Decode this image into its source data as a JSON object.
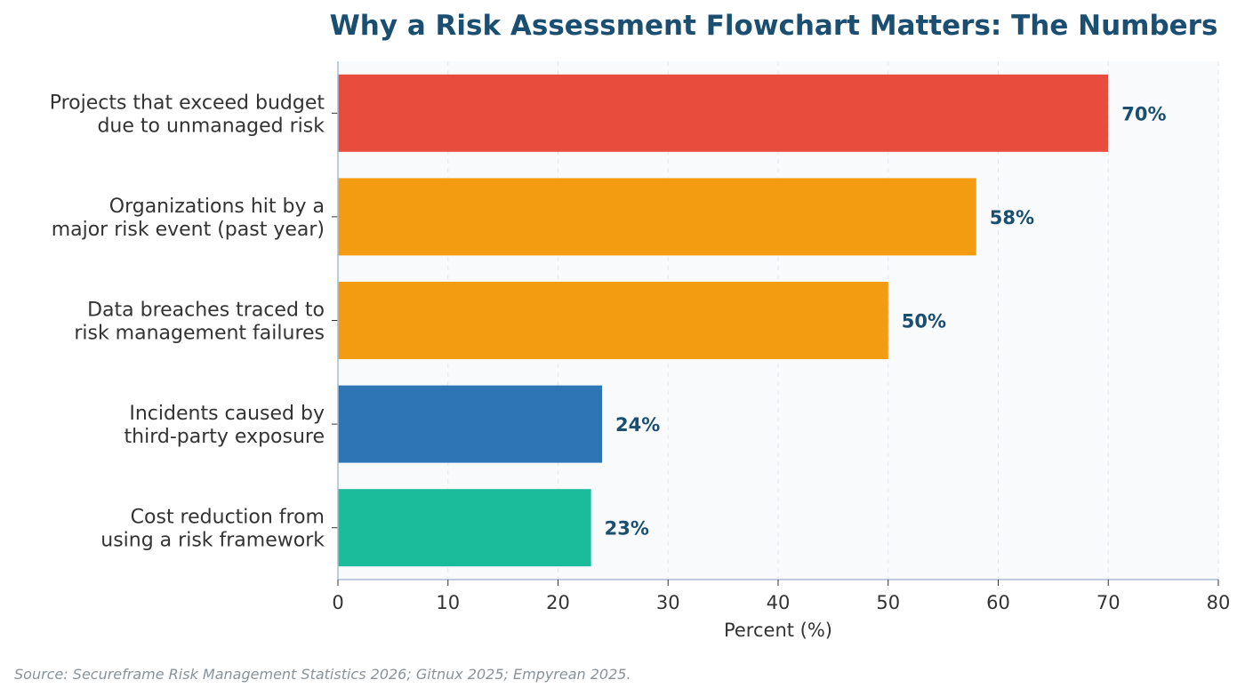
{
  "chart_data": {
    "type": "bar",
    "orientation": "horizontal",
    "title": "Why a Risk Assessment Flowchart Matters: The Numbers",
    "xlabel": "Percent (%)",
    "ylabel": "",
    "xlim": [
      0,
      80
    ],
    "xticks": [
      0,
      10,
      20,
      30,
      40,
      50,
      60,
      70,
      80
    ],
    "grid": "vertical dashed",
    "categories": [
      [
        "Projects that exceed budget",
        "due to unmanaged risk"
      ],
      [
        "Organizations hit by a",
        "major risk event (past year)"
      ],
      [
        "Data breaches traced to",
        "risk management failures"
      ],
      [
        "Incidents caused by",
        "third-party exposure"
      ],
      [
        "Cost reduction from",
        "using a risk framework"
      ]
    ],
    "values": [
      70,
      58,
      50,
      24,
      23
    ],
    "value_labels": [
      "70%",
      "58%",
      "50%",
      "24%",
      "23%"
    ],
    "bar_colors": [
      "#e74c3c",
      "#f39c12",
      "#f39c12",
      "#2e75b6",
      "#1abc9c"
    ]
  },
  "source_note": "Source: Secureframe Risk Management Statistics 2026; Gitnux 2025; Empyrean 2025.",
  "colors": {
    "title": "#1b4f72",
    "value_label": "#1b4f72",
    "text": "#333333",
    "plot_bg": "#f8fafc",
    "axis": "#a9bcd0",
    "grid": "#e2e7ec",
    "source": "#8a9399"
  }
}
